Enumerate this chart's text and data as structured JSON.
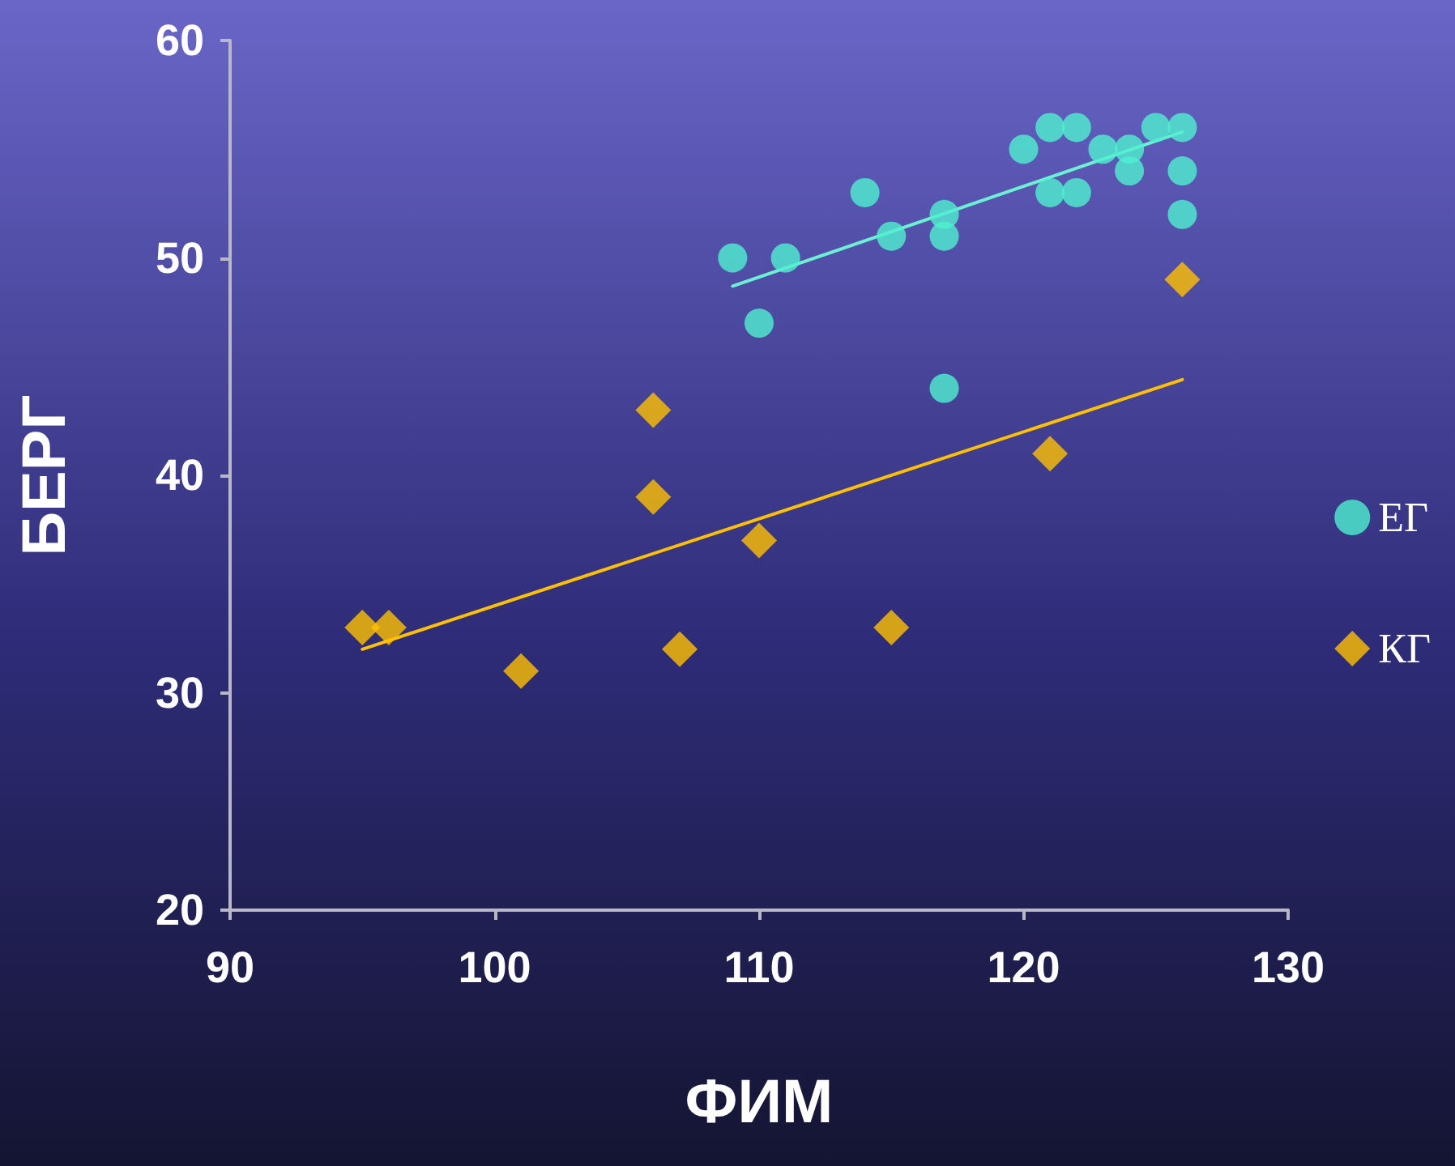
{
  "chart_data": {
    "type": "scatter",
    "xlabel": "ФИМ",
    "ylabel": "БЕРГ",
    "xlim": [
      90,
      130
    ],
    "xticks": [
      90,
      100,
      110,
      120,
      130
    ],
    "ylim": [
      20,
      60
    ],
    "yticks": [
      20,
      30,
      40,
      50,
      60
    ],
    "grid": false,
    "legend": "right",
    "series": [
      {
        "name": "ЕГ",
        "color": "#4ff0cf",
        "marker": "circle",
        "x": [
          109,
          110,
          111,
          114,
          115,
          117,
          117,
          117,
          120,
          121,
          121,
          122,
          122,
          123,
          124,
          124,
          125,
          126,
          126,
          126
        ],
        "values": [
          50,
          47,
          50,
          53,
          51,
          52,
          51,
          44,
          55,
          56,
          53,
          56,
          53,
          55,
          55,
          54,
          56,
          56,
          54,
          52
        ]
      },
      {
        "name": "КГ",
        "color": "#ffc000",
        "marker": "diamond",
        "x": [
          95,
          96,
          101,
          106,
          106,
          107,
          110,
          115,
          121,
          126
        ],
        "values": [
          33,
          33,
          31,
          43,
          39,
          32,
          37,
          33,
          41,
          49
        ]
      },
      {
        "type": "line",
        "color": "#6cf0d4",
        "marker": "none",
        "x": [
          109,
          126
        ],
        "values": [
          48.7,
          55.8
        ]
      },
      {
        "type": "line",
        "color": "#ffc000",
        "marker": "none",
        "x": [
          95,
          126
        ],
        "values": [
          32,
          44.4
        ]
      }
    ]
  }
}
